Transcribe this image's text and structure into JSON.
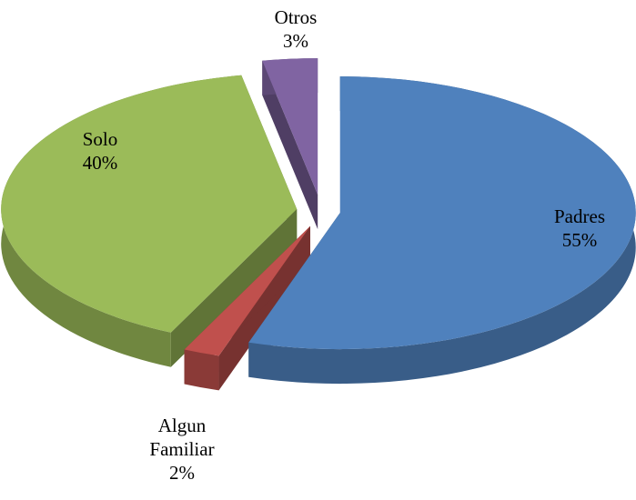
{
  "chart_data": {
    "type": "pie",
    "categories": [
      "Padres",
      "Algun Familiar",
      "Solo",
      "Otros"
    ],
    "values": [
      55,
      2,
      40,
      3
    ],
    "value_labels": [
      "55%",
      "2%",
      "40%",
      "3%"
    ],
    "colors": [
      "#4f81bd",
      "#c0504d",
      "#9bbb59",
      "#8064a2"
    ]
  }
}
